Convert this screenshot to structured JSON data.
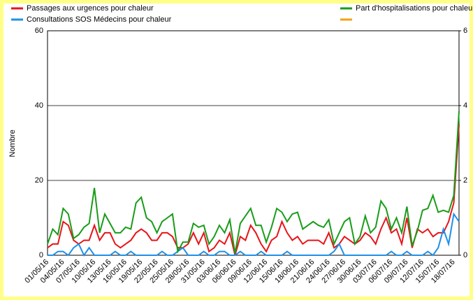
{
  "chart_data": {
    "type": "line",
    "categories": [
      "01/05/16",
      null,
      null,
      "04/05/16",
      null,
      null,
      "07/05/16",
      null,
      null,
      "10/05/16",
      null,
      null,
      "13/05/16",
      null,
      null,
      "16/05/16",
      null,
      null,
      "19/05/16",
      null,
      null,
      "22/05/16",
      null,
      null,
      "25/05/16",
      null,
      null,
      "28/05/16",
      null,
      null,
      "31/05/16",
      null,
      null,
      "03/06/16",
      null,
      null,
      "06/06/16",
      null,
      null,
      "09/06/16",
      null,
      null,
      "12/06/16",
      null,
      null,
      "15/06/16",
      null,
      null,
      "18/06/16",
      null,
      null,
      "21/06/16",
      null,
      null,
      "24/06/16",
      null,
      null,
      "27/06/16",
      null,
      null,
      "30/06/16",
      null,
      null,
      "03/07/16",
      null,
      null,
      "06/07/16",
      null,
      null,
      "09/07/16",
      null,
      null,
      "12/07/16",
      null,
      null,
      "15/07/16",
      null,
      null,
      "18/07/16",
      null
    ],
    "ylabel": "Nombre",
    "ylim": [
      0,
      60
    ],
    "yticks": [
      0,
      20,
      40,
      60
    ],
    "y2lim": [
      0,
      6
    ],
    "y2ticks": [
      0,
      2,
      4,
      6
    ],
    "grid": true,
    "series": [
      {
        "name": "Passages aux urgences pour chaleur",
        "color": "#e8141a",
        "values": [
          2,
          3,
          3,
          9,
          8,
          4,
          3,
          4,
          4,
          8,
          4,
          6,
          6,
          3,
          2,
          3,
          4,
          6,
          7,
          6,
          4,
          4,
          6,
          6,
          5,
          2,
          2,
          3,
          6,
          3,
          6,
          1,
          2,
          4,
          3,
          6,
          0,
          5,
          4,
          8,
          6,
          3,
          1,
          4,
          5,
          9,
          6,
          4,
          5,
          3,
          4,
          4,
          4,
          3,
          6,
          2,
          3,
          5,
          4,
          3,
          4,
          6,
          5,
          3,
          7,
          10,
          6,
          7,
          3,
          10,
          2,
          7,
          6,
          7,
          5,
          6,
          6,
          9,
          14,
          35
        ]
      },
      {
        "name": "Consultations SOS Médecins pour chaleur",
        "color": "#1e90e8",
        "values": [
          0,
          0,
          1,
          1,
          0,
          2,
          3,
          0,
          2,
          0,
          0,
          0,
          0,
          1,
          0,
          0,
          1,
          0,
          0,
          0,
          0,
          0,
          1,
          0,
          0,
          1,
          2,
          0,
          0,
          0,
          1,
          0,
          0,
          1,
          1,
          0,
          0,
          1,
          0,
          0,
          0,
          1,
          0,
          0,
          0,
          0,
          1,
          0,
          0,
          0,
          0,
          0,
          0,
          0,
          0,
          1,
          3,
          0,
          0,
          0,
          0,
          0,
          0,
          0,
          0,
          0,
          1,
          0,
          0,
          1,
          0,
          0,
          0,
          1,
          0,
          2,
          7,
          3,
          11,
          9
        ]
      },
      {
        "name": "Part d'hospitalisations pour chaleur",
        "color": "#199c19",
        "axis": "y2",
        "values": [
          0.3,
          0.7,
          0.55,
          1.25,
          1.1,
          0.45,
          0.55,
          0.75,
          0.85,
          1.8,
          0.6,
          1.1,
          0.85,
          0.6,
          0.6,
          0.75,
          0.7,
          1.4,
          1.55,
          1.0,
          0.9,
          0.6,
          0.9,
          1.0,
          1.1,
          0.1,
          0.35,
          0.35,
          0.85,
          0.75,
          0.8,
          0.3,
          0.5,
          0.8,
          0.6,
          0.95,
          0.05,
          0.85,
          1.05,
          1.25,
          0.8,
          0.8,
          0.35,
          0.75,
          1.25,
          1.15,
          0.9,
          1.1,
          1.15,
          0.7,
          0.8,
          0.9,
          0.8,
          0.75,
          0.95,
          0.3,
          0.6,
          0.9,
          1.0,
          0.3,
          0.5,
          1.05,
          0.6,
          0.75,
          1.45,
          1.25,
          0.7,
          1.0,
          0.6,
          1.3,
          0.25,
          0.65,
          1.2,
          1.25,
          1.6,
          1.15,
          1.2,
          1.15,
          1.6,
          3.85
        ]
      }
    ]
  }
}
